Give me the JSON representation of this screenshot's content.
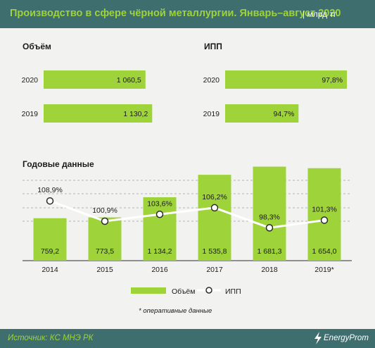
{
  "header": {
    "title": "Производство в сфере чёрной металлургии. Январь–август 2020",
    "unit": "| млрд тг"
  },
  "footer": {
    "source": "Источник: КС МНЭ РК",
    "logo": "EnergyProm"
  },
  "colors": {
    "bar": "#9ed33a",
    "header_bg": "#3f6e6f",
    "background": "#f2f3f1",
    "line": "#ffffff",
    "title_text": "#9ed33a"
  },
  "chart_data": [
    {
      "type": "bar",
      "orientation": "horizontal",
      "title": "Объём",
      "categories": [
        "2020",
        "2019"
      ],
      "values": [
        1060.5,
        1130.2
      ],
      "value_labels": [
        "1 060,5",
        "1 130,2"
      ]
    },
    {
      "type": "bar",
      "orientation": "horizontal",
      "title": "ИПП",
      "categories": [
        "2020",
        "2019"
      ],
      "values": [
        97.8,
        94.7
      ],
      "value_labels": [
        "97,8%",
        "94,7%"
      ]
    },
    {
      "type": "bar",
      "title": "Годовые данные",
      "categories": [
        "2014",
        "2015",
        "2016",
        "2017",
        "2018",
        "2019*"
      ],
      "series": [
        {
          "name": "Объём",
          "type": "bar",
          "values": [
            759.2,
            773.5,
            1134.2,
            1535.8,
            1681.3,
            1654.0
          ],
          "labels": [
            "759,2",
            "773,5",
            "1 134,2",
            "1 535,8",
            "1 681,3",
            "1 654,0"
          ]
        },
        {
          "name": "ИПП",
          "type": "line",
          "values": [
            108.9,
            100.9,
            103.6,
            106.2,
            98.3,
            101.3
          ],
          "labels": [
            "108,9%",
            "100,9%",
            "103,6%",
            "106,2%",
            "98,3%",
            "101,3%"
          ]
        }
      ],
      "legend_position": "bottom",
      "grid": true,
      "note": "* оперативные данные"
    }
  ]
}
